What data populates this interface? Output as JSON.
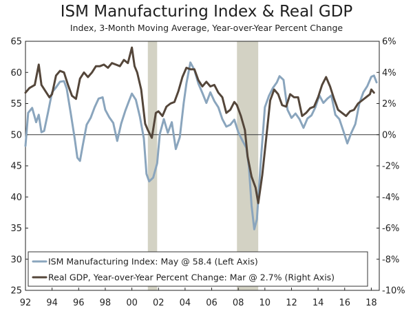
{
  "chart_data": {
    "type": "line",
    "title": "ISM Manufacturing Index & Real GDP",
    "subtitle": "Index, 3-Month Moving Average, Year-over-Year Percent Change",
    "x_tick_labels": [
      "92",
      "94",
      "96",
      "98",
      "00",
      "02",
      "04",
      "06",
      "08",
      "10",
      "12",
      "14",
      "16",
      "18"
    ],
    "x_range": [
      1992.0,
      2018.6
    ],
    "left_axis": {
      "ylim": [
        25,
        65
      ],
      "tick_labels": [
        "25",
        "30",
        "35",
        "40",
        "45",
        "50",
        "55",
        "60",
        "65"
      ]
    },
    "right_axis": {
      "ylim": [
        -10,
        6
      ],
      "tick_labels": [
        "-10%",
        "-8%",
        "-6%",
        "-4%",
        "-2%",
        "0%",
        "2%",
        "4%",
        "6%"
      ]
    },
    "reference_line": {
      "axis": "right",
      "value": 0
    },
    "recessions": [
      [
        2001.2,
        2001.9
      ],
      [
        2007.9,
        2009.5
      ]
    ],
    "series": [
      {
        "name": "ISM Manufacturing Index",
        "legend_label": "ISM Manufacturing Index: May @ 58.4 (Left Axis)",
        "axis": "left",
        "color": "#8aa5bd",
        "x": [
          1992.0,
          1992.2,
          1992.5,
          1992.8,
          1993.0,
          1993.2,
          1993.4,
          1993.7,
          1994.0,
          1994.3,
          1994.6,
          1994.9,
          1995.1,
          1995.4,
          1995.7,
          1995.9,
          1996.1,
          1996.3,
          1996.6,
          1996.9,
          1997.2,
          1997.5,
          1997.8,
          1998.0,
          1998.3,
          1998.6,
          1998.9,
          1999.2,
          1999.5,
          1999.8,
          2000.0,
          2000.3,
          2000.6,
          2000.9,
          2001.1,
          2001.3,
          2001.6,
          2001.9,
          2002.1,
          2002.4,
          2002.7,
          2003.0,
          2003.3,
          2003.6,
          2003.9,
          2004.1,
          2004.4,
          2004.7,
          2005.0,
          2005.3,
          2005.6,
          2005.9,
          2006.2,
          2006.5,
          2006.8,
          2007.1,
          2007.4,
          2007.7,
          2008.0,
          2008.3,
          2008.6,
          2008.8,
          2009.0,
          2009.2,
          2009.4,
          2009.7,
          2010.0,
          2010.3,
          2010.6,
          2010.9,
          2011.1,
          2011.4,
          2011.7,
          2012.0,
          2012.3,
          2012.6,
          2012.9,
          2013.2,
          2013.5,
          2013.8,
          2014.1,
          2014.4,
          2014.7,
          2015.0,
          2015.3,
          2015.6,
          2015.9,
          2016.2,
          2016.5,
          2016.8,
          2017.1,
          2017.4,
          2017.7,
          2018.0,
          2018.2,
          2018.4
        ],
        "values": [
          48.2,
          53.5,
          54.3,
          52.0,
          53.2,
          50.4,
          50.6,
          53.6,
          56.8,
          57.6,
          58.5,
          58.6,
          57.4,
          53.5,
          49.4,
          46.3,
          45.8,
          48.2,
          51.6,
          52.7,
          54.4,
          55.8,
          56.0,
          54.0,
          52.8,
          51.9,
          49.0,
          51.8,
          53.8,
          55.5,
          56.6,
          55.6,
          52.9,
          49.4,
          43.7,
          42.5,
          43.1,
          45.4,
          50.1,
          52.5,
          50.3,
          52.0,
          47.7,
          49.6,
          55.1,
          58.2,
          61.6,
          60.4,
          58.2,
          56.7,
          55.1,
          56.8,
          55.4,
          54.4,
          52.5,
          51.3,
          51.6,
          52.4,
          50.4,
          49.1,
          47.9,
          44.9,
          38.6,
          34.8,
          36.4,
          45.9,
          54.4,
          56.2,
          57.5,
          58.4,
          59.4,
          58.8,
          54.0,
          52.7,
          53.4,
          52.5,
          51.1,
          52.6,
          53.1,
          54.4,
          56.3,
          55.1,
          55.8,
          56.3,
          53.2,
          52.5,
          50.6,
          48.6,
          50.3,
          51.7,
          55.0,
          56.8,
          57.8,
          59.3,
          59.5,
          58.4
        ]
      },
      {
        "name": "Real GDP, Year-over-Year Percent Change",
        "legend_label": "Real GDP, Year-over-Year Percent Change: Mar @ 2.7% (Right Axis)",
        "axis": "right",
        "color": "#54463a",
        "x": [
          1992.0,
          1992.3,
          1992.7,
          1993.0,
          1993.2,
          1993.5,
          1993.8,
          1994.0,
          1994.3,
          1994.6,
          1994.9,
          1995.2,
          1995.5,
          1995.8,
          1996.1,
          1996.4,
          1996.7,
          1997.0,
          1997.3,
          1997.6,
          1997.9,
          1998.2,
          1998.5,
          1998.8,
          1999.1,
          1999.4,
          1999.7,
          2000.0,
          2000.2,
          2000.4,
          2000.7,
          2001.0,
          2001.2,
          2001.5,
          2001.8,
          2002.0,
          2002.3,
          2002.6,
          2002.9,
          2003.2,
          2003.5,
          2003.8,
          2004.1,
          2004.4,
          2004.7,
          2005.0,
          2005.3,
          2005.6,
          2005.9,
          2006.2,
          2006.5,
          2006.8,
          2007.1,
          2007.4,
          2007.7,
          2007.9,
          2008.2,
          2008.5,
          2008.7,
          2009.0,
          2009.3,
          2009.5,
          2009.8,
          2010.1,
          2010.4,
          2010.7,
          2011.0,
          2011.3,
          2011.6,
          2011.9,
          2012.2,
          2012.5,
          2012.8,
          2013.1,
          2013.4,
          2013.7,
          2014.0,
          2014.3,
          2014.6,
          2014.9,
          2015.2,
          2015.5,
          2015.8,
          2016.1,
          2016.4,
          2016.7,
          2017.0,
          2017.3,
          2017.6,
          2017.9,
          2018.0,
          2018.2
        ],
        "values": [
          2.7,
          3.0,
          3.2,
          4.5,
          3.2,
          2.8,
          2.4,
          2.6,
          3.8,
          4.1,
          4.0,
          3.2,
          2.5,
          2.3,
          3.6,
          4.0,
          3.7,
          4.0,
          4.4,
          4.4,
          4.5,
          4.3,
          4.6,
          4.5,
          4.4,
          4.8,
          4.6,
          5.6,
          4.4,
          4.0,
          2.9,
          0.7,
          0.3,
          -0.2,
          1.4,
          1.5,
          1.2,
          1.8,
          2.0,
          2.1,
          2.8,
          3.7,
          4.3,
          4.2,
          4.2,
          3.5,
          3.1,
          3.4,
          3.1,
          3.2,
          2.7,
          2.4,
          1.4,
          1.6,
          2.1,
          1.9,
          1.2,
          0.3,
          -1.4,
          -2.7,
          -3.4,
          -4.4,
          -2.6,
          -0.2,
          2.2,
          2.9,
          2.6,
          1.9,
          1.8,
          2.6,
          2.4,
          2.4,
          1.2,
          1.4,
          1.7,
          1.8,
          2.4,
          3.2,
          3.7,
          3.1,
          2.3,
          1.6,
          1.4,
          1.2,
          1.5,
          1.6,
          2.0,
          2.2,
          2.4,
          2.6,
          2.9,
          2.7
        ]
      }
    ]
  }
}
